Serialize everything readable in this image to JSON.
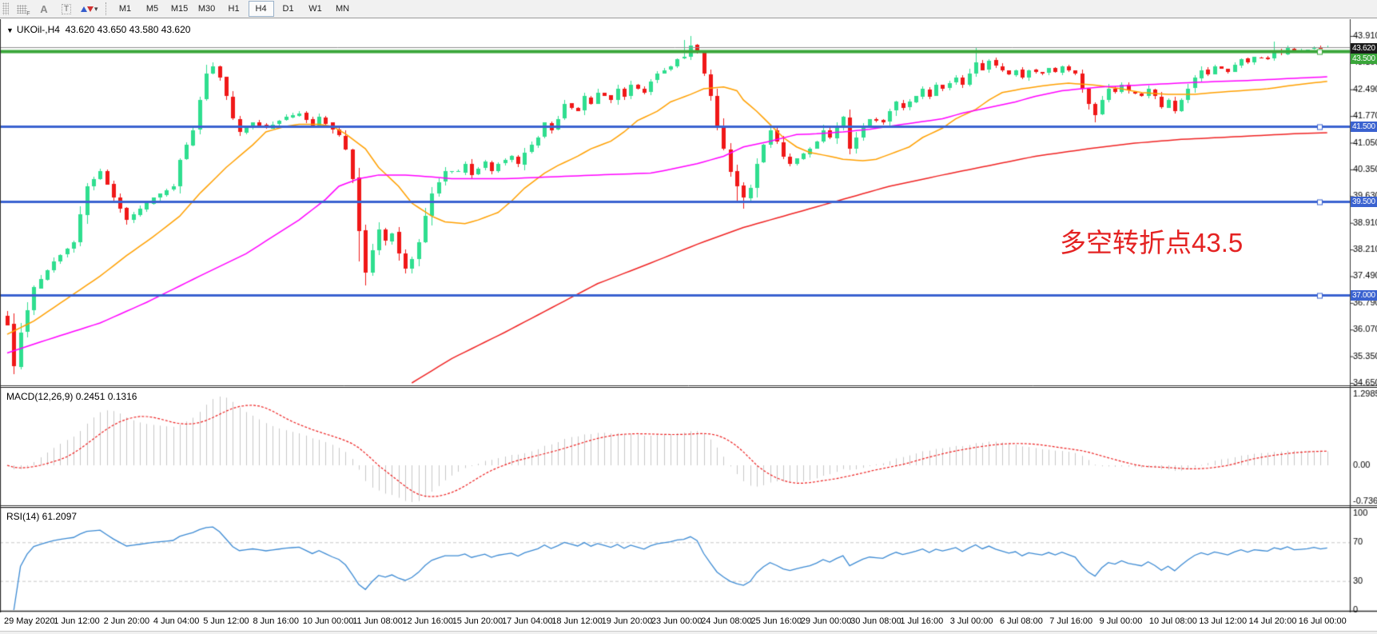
{
  "toolbar": {
    "tools": [
      {
        "name": "grid-toggle",
        "label": "F"
      },
      {
        "name": "text-label-tool",
        "label": "A"
      },
      {
        "name": "text-tool",
        "label": "T"
      },
      {
        "name": "arrows-tool",
        "label": "▾"
      }
    ],
    "timeframes": [
      "M1",
      "M5",
      "M15",
      "M30",
      "H1",
      "H4",
      "D1",
      "W1",
      "MN"
    ],
    "active_timeframe": "H4"
  },
  "chart": {
    "collapse_glyph": "▼",
    "title_symbol": "UKOil-,H4",
    "title_ohlc": "43.620 43.650 43.580 43.620"
  },
  "annotation": {
    "text": "多空转折点43.5",
    "color": "#e42222"
  },
  "indicators": {
    "macd": {
      "label": "MACD(12,26,9) 0.2451 0.1316",
      "axis_labels": [
        "1.2985",
        "0.00",
        "-0.7362"
      ]
    },
    "rsi": {
      "label": "RSI(14) 61.2097",
      "axis_labels": [
        "100",
        "70",
        "30",
        "0"
      ]
    }
  },
  "price_axis": {
    "tick_labels": [
      "43.910",
      "43.190",
      "42.490",
      "41.770",
      "41.050",
      "40.350",
      "39.630",
      "38.910",
      "38.210",
      "37.490",
      "36.790",
      "36.070",
      "35.350",
      "34.650"
    ],
    "tags": [
      {
        "label": "43.620",
        "price": 43.62,
        "color": "#1a1a1a",
        "role": "current-price"
      },
      {
        "label": "43.500",
        "price": 43.5,
        "color": "#3aa63a",
        "role": "horizontal-line"
      },
      {
        "label": "41.500",
        "price": 41.5,
        "color": "#3a62d0",
        "role": "horizontal-line"
      },
      {
        "label": "39.500",
        "price": 39.5,
        "color": "#3a62d0",
        "role": "horizontal-line"
      },
      {
        "label": "37.000",
        "price": 37.0,
        "color": "#3a62d0",
        "role": "horizontal-line"
      }
    ]
  },
  "chart_data": {
    "type": "candlestick",
    "symbol": "UKOil-",
    "timeframe": "H4",
    "bars": 200,
    "y_range": [
      34.65,
      43.91
    ],
    "last_bar_ohlc": {
      "open": 43.62,
      "high": 43.65,
      "low": 43.58,
      "close": 43.62
    },
    "x_axis_labels": [
      "29 May 2020",
      "1 Jun 12:00",
      "2 Jun 20:00",
      "4 Jun 04:00",
      "5 Jun 12:00",
      "8 Jun 16:00",
      "10 Jun 00:00",
      "11 Jun 08:00",
      "12 Jun 16:00",
      "15 Jun 20:00",
      "17 Jun 04:00",
      "18 Jun 12:00",
      "19 Jun 20:00",
      "23 Jun 00:00",
      "24 Jun 08:00",
      "25 Jun 16:00",
      "29 Jun 00:00",
      "30 Jun 08:00",
      "1 Jul 16:00",
      "3 Jul 00:00",
      "6 Jul 08:00",
      "7 Jul 16:00",
      "9 Jul 00:00",
      "10 Jul 08:00",
      "13 Jul 12:00",
      "14 Jul 20:00",
      "16 Jul 00:00"
    ],
    "horizontal_levels": [
      {
        "price": 43.62,
        "color": "#909090",
        "width": 1
      },
      {
        "price": 43.5,
        "color": "#3aa63a",
        "width": 4
      },
      {
        "price": 41.5,
        "color": "#3a62d0",
        "width": 3
      },
      {
        "price": 39.5,
        "color": "#3a62d0",
        "width": 3
      },
      {
        "price": 37.0,
        "color": "#3a62d0",
        "width": 3
      }
    ],
    "candle_colors": {
      "up": "#2fde8f",
      "down": "#f01818"
    },
    "close_anchors": [
      [
        0,
        36.2
      ],
      [
        1,
        35.1
      ],
      [
        2,
        36.0
      ],
      [
        4,
        37.2
      ],
      [
        7,
        37.9
      ],
      [
        10,
        38.4
      ],
      [
        12,
        39.9
      ],
      [
        14,
        40.3
      ],
      [
        16,
        39.6
      ],
      [
        18,
        39.0
      ],
      [
        20,
        39.3
      ],
      [
        22,
        39.6
      ],
      [
        25,
        39.9
      ],
      [
        26,
        40.6
      ],
      [
        28,
        41.4
      ],
      [
        29,
        42.2
      ],
      [
        30,
        42.9
      ],
      [
        31,
        43.1
      ],
      [
        32,
        42.8
      ],
      [
        33,
        42.3
      ],
      [
        34,
        41.7
      ],
      [
        35,
        41.35
      ],
      [
        37,
        41.6
      ],
      [
        39,
        41.45
      ],
      [
        42,
        41.75
      ],
      [
        44,
        41.85
      ],
      [
        46,
        41.5
      ],
      [
        47,
        41.75
      ],
      [
        49,
        41.4
      ],
      [
        50,
        41.25
      ],
      [
        51,
        40.9
      ],
      [
        52,
        40.1
      ],
      [
        53,
        38.7
      ],
      [
        54,
        37.6
      ],
      [
        55,
        38.2
      ],
      [
        56,
        38.75
      ],
      [
        57,
        38.45
      ],
      [
        58,
        38.65
      ],
      [
        59,
        38.1
      ],
      [
        60,
        37.7
      ],
      [
        61,
        37.95
      ],
      [
        62,
        38.4
      ],
      [
        63,
        39.1
      ],
      [
        64,
        39.7
      ],
      [
        65,
        40.0
      ],
      [
        66,
        40.3
      ],
      [
        68,
        40.3
      ],
      [
        69,
        40.5
      ],
      [
        70,
        40.2
      ],
      [
        72,
        40.55
      ],
      [
        73,
        40.3
      ],
      [
        74,
        40.5
      ],
      [
        76,
        40.7
      ],
      [
        77,
        40.5
      ],
      [
        78,
        40.8
      ],
      [
        80,
        41.2
      ],
      [
        81,
        41.6
      ],
      [
        82,
        41.4
      ],
      [
        83,
        41.7
      ],
      [
        84,
        42.1
      ],
      [
        86,
        41.9
      ],
      [
        87,
        42.3
      ],
      [
        88,
        42.1
      ],
      [
        89,
        42.4
      ],
      [
        91,
        42.2
      ],
      [
        92,
        42.5
      ],
      [
        93,
        42.3
      ],
      [
        94,
        42.6
      ],
      [
        96,
        42.4
      ],
      [
        97,
        42.7
      ],
      [
        98,
        42.9
      ],
      [
        100,
        43.1
      ],
      [
        101,
        43.3
      ],
      [
        102,
        43.35
      ],
      [
        103,
        43.65
      ],
      [
        104,
        43.5
      ],
      [
        105,
        42.9
      ],
      [
        106,
        42.3
      ],
      [
        107,
        41.5
      ],
      [
        108,
        40.9
      ],
      [
        109,
        40.3
      ],
      [
        110,
        39.9
      ],
      [
        111,
        39.6
      ],
      [
        112,
        39.85
      ],
      [
        113,
        40.5
      ],
      [
        114,
        41.0
      ],
      [
        115,
        41.4
      ],
      [
        116,
        41.1
      ],
      [
        117,
        40.7
      ],
      [
        118,
        40.5
      ],
      [
        119,
        40.65
      ],
      [
        121,
        40.9
      ],
      [
        122,
        41.1
      ],
      [
        123,
        41.4
      ],
      [
        124,
        41.2
      ],
      [
        125,
        41.5
      ],
      [
        126,
        41.75
      ],
      [
        127,
        40.9
      ],
      [
        128,
        41.2
      ],
      [
        129,
        41.5
      ],
      [
        130,
        41.7
      ],
      [
        132,
        41.6
      ],
      [
        133,
        41.9
      ],
      [
        134,
        42.15
      ],
      [
        135,
        42.0
      ],
      [
        137,
        42.3
      ],
      [
        138,
        42.5
      ],
      [
        139,
        42.3
      ],
      [
        140,
        42.6
      ],
      [
        141,
        42.5
      ],
      [
        143,
        42.8
      ],
      [
        144,
        42.6
      ],
      [
        146,
        43.2
      ],
      [
        147,
        43.0
      ],
      [
        148,
        43.25
      ],
      [
        149,
        43.1
      ],
      [
        151,
        42.9
      ],
      [
        152,
        43.0
      ],
      [
        153,
        42.8
      ],
      [
        154,
        43.0
      ],
      [
        156,
        42.9
      ],
      [
        157,
        43.05
      ],
      [
        158,
        42.95
      ],
      [
        159,
        43.1
      ],
      [
        161,
        42.9
      ],
      [
        162,
        42.5
      ],
      [
        163,
        42.1
      ],
      [
        164,
        41.8
      ],
      [
        165,
        42.2
      ],
      [
        166,
        42.5
      ],
      [
        167,
        42.4
      ],
      [
        168,
        42.6
      ],
      [
        169,
        42.45
      ],
      [
        171,
        42.3
      ],
      [
        172,
        42.5
      ],
      [
        173,
        42.3
      ],
      [
        174,
        42.0
      ],
      [
        175,
        42.2
      ],
      [
        176,
        41.9
      ],
      [
        177,
        42.2
      ],
      [
        178,
        42.5
      ],
      [
        179,
        42.8
      ],
      [
        180,
        43.0
      ],
      [
        181,
        42.9
      ],
      [
        182,
        43.1
      ],
      [
        184,
        42.95
      ],
      [
        185,
        43.15
      ],
      [
        186,
        43.3
      ],
      [
        187,
        43.2
      ],
      [
        188,
        43.35
      ],
      [
        190,
        43.3
      ],
      [
        191,
        43.5
      ],
      [
        192,
        43.45
      ],
      [
        193,
        43.6
      ],
      [
        194,
        43.5
      ],
      [
        196,
        43.55
      ],
      [
        197,
        43.62
      ],
      [
        198,
        43.58
      ],
      [
        199,
        43.62
      ]
    ],
    "wick_overrides": {
      "1": {
        "low": 34.88
      },
      "53": {
        "low": 37.9
      },
      "54": {
        "low": 37.25
      },
      "102": {
        "high": 43.8
      },
      "103": {
        "high": 43.91
      },
      "110": {
        "low": 39.5
      },
      "111": {
        "low": 39.3
      },
      "146": {
        "high": 43.6
      },
      "164": {
        "low": 41.62
      },
      "191": {
        "high": 43.75
      },
      "199": {
        "open": 43.62,
        "high": 43.65,
        "low": 43.58,
        "close": 43.62
      }
    },
    "moving_averages": [
      {
        "name": "fast",
        "color": "#ffa000",
        "anchors": [
          [
            0,
            35.95
          ],
          [
            4,
            36.3
          ],
          [
            9,
            36.9
          ],
          [
            14,
            37.5
          ],
          [
            18,
            38.05
          ],
          [
            22,
            38.55
          ],
          [
            26,
            39.1
          ],
          [
            29,
            39.7
          ],
          [
            33,
            40.4
          ],
          [
            37,
            41.0
          ],
          [
            39,
            41.35
          ],
          [
            42,
            41.5
          ],
          [
            44,
            41.55
          ],
          [
            47,
            41.55
          ],
          [
            49,
            41.5
          ],
          [
            51,
            41.3
          ],
          [
            54,
            40.9
          ],
          [
            56,
            40.4
          ],
          [
            59,
            39.9
          ],
          [
            61,
            39.45
          ],
          [
            64,
            39.1
          ],
          [
            66,
            38.95
          ],
          [
            69,
            38.9
          ],
          [
            71,
            39.0
          ],
          [
            74,
            39.2
          ],
          [
            76,
            39.5
          ],
          [
            78,
            39.85
          ],
          [
            81,
            40.25
          ],
          [
            83,
            40.45
          ],
          [
            86,
            40.7
          ],
          [
            88,
            40.9
          ],
          [
            91,
            41.1
          ],
          [
            93,
            41.35
          ],
          [
            95,
            41.65
          ],
          [
            98,
            41.9
          ],
          [
            100,
            42.15
          ],
          [
            103,
            42.35
          ],
          [
            105,
            42.5
          ],
          [
            108,
            42.55
          ],
          [
            110,
            42.45
          ],
          [
            111,
            42.2
          ],
          [
            113,
            41.9
          ],
          [
            115,
            41.55
          ],
          [
            117,
            41.2
          ],
          [
            119,
            40.95
          ],
          [
            121,
            40.8
          ],
          [
            124,
            40.7
          ],
          [
            126,
            40.62
          ],
          [
            129,
            40.58
          ],
          [
            131,
            40.62
          ],
          [
            133,
            40.75
          ],
          [
            136,
            40.95
          ],
          [
            138,
            41.2
          ],
          [
            141,
            41.45
          ],
          [
            143,
            41.7
          ],
          [
            146,
            41.95
          ],
          [
            148,
            42.2
          ],
          [
            150,
            42.4
          ],
          [
            153,
            42.5
          ],
          [
            157,
            42.6
          ],
          [
            160,
            42.65
          ],
          [
            164,
            42.6
          ],
          [
            168,
            42.5
          ],
          [
            171,
            42.4
          ],
          [
            175,
            42.35
          ],
          [
            179,
            42.35
          ],
          [
            182,
            42.4
          ],
          [
            186,
            42.45
          ],
          [
            190,
            42.5
          ],
          [
            194,
            42.6
          ],
          [
            199,
            42.7
          ]
        ]
      },
      {
        "name": "medium",
        "color": "#ff00ff",
        "anchors": [
          [
            0,
            35.45
          ],
          [
            6,
            35.8
          ],
          [
            14,
            36.25
          ],
          [
            21,
            36.8
          ],
          [
            29,
            37.5
          ],
          [
            36,
            38.1
          ],
          [
            40,
            38.55
          ],
          [
            44,
            39.0
          ],
          [
            48,
            39.55
          ],
          [
            50,
            39.9
          ],
          [
            53,
            40.1
          ],
          [
            56,
            40.2
          ],
          [
            60,
            40.2
          ],
          [
            64,
            40.15
          ],
          [
            67,
            40.1
          ],
          [
            75,
            40.1
          ],
          [
            82,
            40.15
          ],
          [
            89,
            40.2
          ],
          [
            97,
            40.25
          ],
          [
            100,
            40.35
          ],
          [
            104,
            40.5
          ],
          [
            108,
            40.7
          ],
          [
            111,
            40.95
          ],
          [
            115,
            41.1
          ],
          [
            119,
            41.28
          ],
          [
            122,
            41.3
          ],
          [
            126,
            41.35
          ],
          [
            130,
            41.42
          ],
          [
            133,
            41.5
          ],
          [
            137,
            41.6
          ],
          [
            141,
            41.7
          ],
          [
            144,
            41.85
          ],
          [
            148,
            42.0
          ],
          [
            152,
            42.15
          ],
          [
            155,
            42.3
          ],
          [
            159,
            42.45
          ],
          [
            165,
            42.55
          ],
          [
            173,
            42.62
          ],
          [
            180,
            42.68
          ],
          [
            187,
            42.72
          ],
          [
            194,
            42.78
          ],
          [
            199,
            42.82
          ]
        ]
      },
      {
        "name": "slow",
        "color": "#f02222",
        "start_bar": 61,
        "anchors": [
          [
            61,
            34.65
          ],
          [
            67,
            35.3
          ],
          [
            75,
            36.0
          ],
          [
            82,
            36.65
          ],
          [
            89,
            37.3
          ],
          [
            97,
            37.85
          ],
          [
            104,
            38.35
          ],
          [
            111,
            38.8
          ],
          [
            119,
            39.2
          ],
          [
            126,
            39.55
          ],
          [
            133,
            39.9
          ],
          [
            141,
            40.2
          ],
          [
            148,
            40.45
          ],
          [
            155,
            40.7
          ],
          [
            163,
            40.9
          ],
          [
            170,
            41.05
          ],
          [
            177,
            41.15
          ],
          [
            185,
            41.22
          ],
          [
            194,
            41.3
          ],
          [
            199,
            41.33
          ]
        ]
      }
    ],
    "macd": {
      "fast": 12,
      "slow": 26,
      "signal": 9,
      "current_main": 0.2451,
      "current_signal": 0.1316,
      "histogram_color": "#c8c8c8",
      "signal_color": "#ee2222"
    },
    "rsi": {
      "period": 14,
      "current": 61.2097,
      "color": "#3d8bd4",
      "levels": [
        70,
        30
      ],
      "level_color": "#c8c8c8"
    }
  }
}
